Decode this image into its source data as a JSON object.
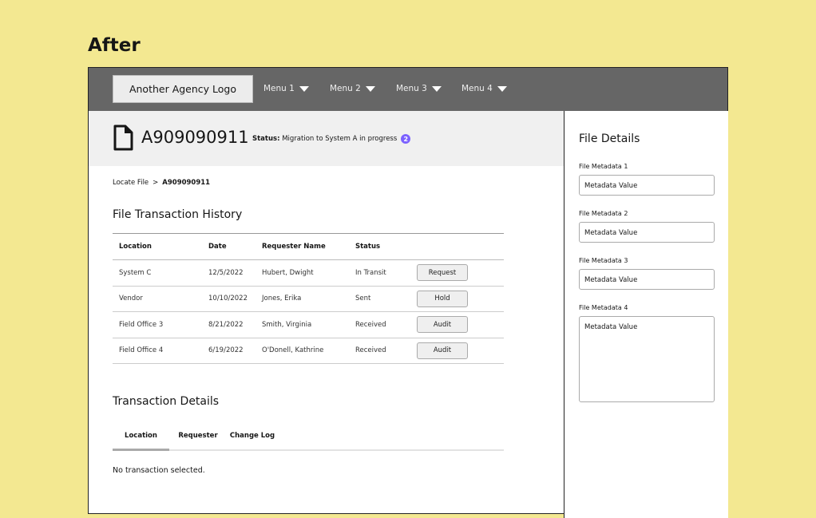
{
  "heading": "After",
  "nav": {
    "logo": "Another Agency Logo",
    "menus": [
      "Menu 1",
      "Menu 2",
      "Menu 3",
      "Menu 4"
    ]
  },
  "file": {
    "id": "A909090911",
    "status_label": "Status:",
    "status_text": "Migration to System A in progress",
    "badge": "2"
  },
  "breadcrumb": {
    "parent": "Locate File",
    "current": "A909090911"
  },
  "history": {
    "title": "File Transaction History",
    "columns": [
      "Location",
      "Date",
      "Requester Name",
      "Status"
    ],
    "rows": [
      {
        "location": "System C",
        "date": "12/5/2022",
        "requester": "Hubert, Dwight",
        "status": "In Transit",
        "action": "Request"
      },
      {
        "location": "Vendor",
        "date": "10/10/2022",
        "requester": "Jones, Erika",
        "status": "Sent",
        "action": "Hold"
      },
      {
        "location": "Field Office 3",
        "date": "8/21/2022",
        "requester": "Smith, Virginia",
        "status": "Received",
        "action": "Audit"
      },
      {
        "location": "Field Office 4",
        "date": "6/19/2022",
        "requester": "O'Donell, Kathrine",
        "status": "Received",
        "action": "Audit"
      }
    ]
  },
  "details": {
    "title": "Transaction Details",
    "tabs": [
      "Location",
      "Requester",
      "Change Log"
    ],
    "active_tab": "Location",
    "empty": "No transaction selected."
  },
  "side": {
    "title": "File Details",
    "fields": [
      {
        "label": "File Metadata 1",
        "value": "Metadata Value"
      },
      {
        "label": "File Metadata 2",
        "value": "Metadata Value"
      },
      {
        "label": "File Metadata 3",
        "value": "Metadata Value"
      },
      {
        "label": "File Metadata 4",
        "value": "Metadata Value"
      }
    ]
  },
  "colors": {
    "background": "#f3e891",
    "nav": "#666666",
    "badge": "#7b61ff"
  }
}
